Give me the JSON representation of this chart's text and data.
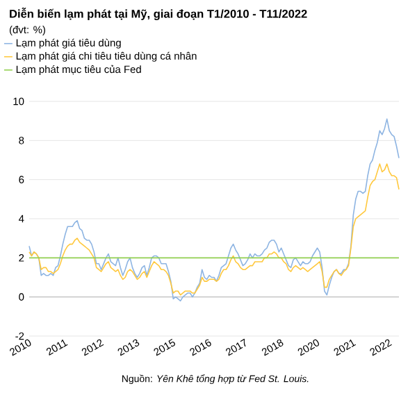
{
  "chart_data": {
    "type": "line",
    "title": "Diễn biến lạm phát tại Mỹ, giai đoạn T1/2010 - T11/2022",
    "subtitle": "(đvt: %)",
    "annotations": [
      "Nguồn: *Yên Khê tổng hợp từ Fed St. Louis.*"
    ],
    "categories": [
      "2010",
      null,
      null,
      null,
      null,
      null,
      null,
      null,
      null,
      null,
      null,
      null,
      null,
      null,
      null,
      "2011",
      null,
      null,
      null,
      null,
      null,
      null,
      null,
      null,
      null,
      null,
      null,
      null,
      null,
      null,
      "2012",
      null,
      null,
      null,
      null,
      null,
      null,
      null,
      null,
      null,
      null,
      null,
      null,
      null,
      null,
      "2013",
      null,
      null,
      null,
      null,
      null,
      null,
      null,
      null,
      null,
      null,
      null,
      null,
      null,
      null,
      "2015",
      null,
      null,
      null,
      null,
      null,
      null,
      null,
      null,
      null,
      null,
      null,
      null,
      null,
      null,
      "2016",
      null,
      null,
      null,
      null,
      null,
      null,
      null,
      null,
      null,
      null,
      null,
      null,
      null,
      null,
      "2017",
      null,
      null,
      null,
      null,
      null,
      null,
      null,
      null,
      null,
      null,
      null,
      null,
      null,
      null,
      "2018",
      null,
      null,
      null,
      null,
      null,
      null,
      null,
      null,
      null,
      null,
      null,
      null,
      null,
      null,
      "2020",
      null,
      null,
      null,
      null,
      null,
      null,
      null,
      null,
      null,
      null,
      null,
      null,
      null,
      null,
      "2021",
      null,
      null,
      null,
      null,
      null,
      null,
      null,
      null,
      null,
      null,
      null,
      null,
      null,
      null,
      "2022",
      null,
      null,
      null,
      null
    ],
    "series": [
      {
        "name": "Lạm phát giá tiêu dùng",
        "color": "#8db4e2",
        "values": [
          2.6,
          2.1,
          2.3,
          2.2,
          2.0,
          1.1,
          1.2,
          1.1,
          1.1,
          1.2,
          1.1,
          1.5,
          1.6,
          2.1,
          2.7,
          3.2,
          3.6,
          3.6,
          3.6,
          3.8,
          3.9,
          3.5,
          3.4,
          3.0,
          2.9,
          2.9,
          2.7,
          2.3,
          1.7,
          1.7,
          1.4,
          1.7,
          2.0,
          2.2,
          1.8,
          1.7,
          1.6,
          2.0,
          1.5,
          1.1,
          1.4,
          1.8,
          2.0,
          1.5,
          1.2,
          1.0,
          1.2,
          1.5,
          1.6,
          1.1,
          1.5,
          2.0,
          2.1,
          2.1,
          2.0,
          1.7,
          1.7,
          1.7,
          1.3,
          0.8,
          -0.1,
          0.0,
          -0.1,
          -0.2,
          0.0,
          0.1,
          0.2,
          0.2,
          0.0,
          0.2,
          0.5,
          0.7,
          1.4,
          1.0,
          0.9,
          1.1,
          1.0,
          1.0,
          0.8,
          1.1,
          1.5,
          1.6,
          1.7,
          2.1,
          2.5,
          2.7,
          2.4,
          2.2,
          1.9,
          1.6,
          1.7,
          1.9,
          2.2,
          2.0,
          2.2,
          2.1,
          2.1,
          2.2,
          2.4,
          2.5,
          2.8,
          2.9,
          2.9,
          2.7,
          2.3,
          2.5,
          2.2,
          1.9,
          1.6,
          1.5,
          1.9,
          2.0,
          1.8,
          1.6,
          1.8,
          1.7,
          1.7,
          1.8,
          2.1,
          2.3,
          2.5,
          2.3,
          1.5,
          0.3,
          0.1,
          0.6,
          1.0,
          1.3,
          1.4,
          1.2,
          1.2,
          1.4,
          1.4,
          1.7,
          2.6,
          4.2,
          5.0,
          5.4,
          5.4,
          5.3,
          5.4,
          6.2,
          6.8,
          7.0,
          7.5,
          7.9,
          8.5,
          8.3,
          8.6,
          9.1,
          8.5,
          8.3,
          8.2,
          7.7,
          7.1
        ]
      },
      {
        "name": "Lạm phát giá chi tiêu tiêu dùng cá nhân",
        "color": "#ffc83d",
        "values": [
          2.3,
          2.1,
          2.3,
          2.2,
          2.0,
          1.4,
          1.5,
          1.5,
          1.3,
          1.3,
          1.2,
          1.3,
          1.4,
          1.7,
          2.1,
          2.4,
          2.6,
          2.7,
          2.7,
          2.9,
          3.0,
          2.8,
          2.7,
          2.6,
          2.5,
          2.4,
          2.2,
          2.0,
          1.5,
          1.4,
          1.3,
          1.5,
          1.7,
          1.8,
          1.5,
          1.4,
          1.3,
          1.4,
          1.1,
          0.9,
          1.0,
          1.3,
          1.4,
          1.3,
          1.1,
          0.9,
          1.0,
          1.2,
          1.3,
          1.0,
          1.3,
          1.6,
          1.8,
          1.7,
          1.6,
          1.4,
          1.4,
          1.3,
          1.1,
          0.7,
          0.2,
          0.3,
          0.3,
          0.1,
          0.2,
          0.3,
          0.3,
          0.3,
          0.2,
          0.2,
          0.4,
          0.6,
          1.0,
          0.8,
          0.8,
          0.9,
          0.9,
          0.9,
          0.8,
          0.9,
          1.2,
          1.4,
          1.4,
          1.6,
          1.9,
          2.1,
          1.8,
          1.7,
          1.5,
          1.4,
          1.4,
          1.5,
          1.6,
          1.6,
          1.8,
          1.8,
          1.8,
          1.8,
          2.0,
          2.0,
          2.2,
          2.2,
          2.3,
          2.2,
          2.0,
          2.0,
          1.8,
          1.7,
          1.4,
          1.3,
          1.5,
          1.6,
          1.5,
          1.4,
          1.5,
          1.4,
          1.3,
          1.4,
          1.5,
          1.6,
          1.7,
          1.8,
          1.3,
          0.5,
          0.5,
          0.9,
          1.1,
          1.3,
          1.4,
          1.2,
          1.1,
          1.3,
          1.4,
          1.6,
          2.5,
          3.6,
          4.0,
          4.1,
          4.2,
          4.3,
          4.4,
          5.1,
          5.7,
          5.9,
          6.0,
          6.4,
          6.8,
          6.4,
          6.5,
          6.8,
          6.4,
          6.2,
          6.2,
          6.1,
          5.5
        ]
      }
    ],
    "ref_lines": [
      {
        "axis": "y",
        "value": 2,
        "label": "Lạm phát mục tiêu của Fed",
        "color": "#92d050"
      }
    ],
    "ylim": [
      -2,
      10
    ],
    "yticks": [
      -2,
      0,
      2,
      4,
      6,
      8,
      10
    ],
    "grid": "y",
    "legend": "top left"
  }
}
